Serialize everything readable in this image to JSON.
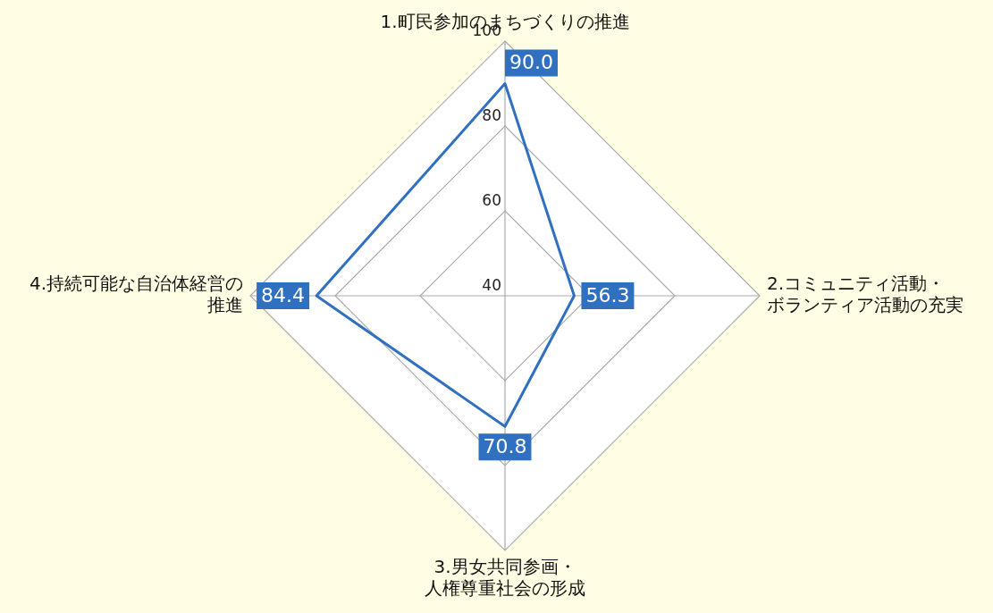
{
  "chart_data": {
    "type": "radar",
    "categories": [
      "1.町民参加のまちづくりの推進",
      "2.コミュニティ活動・ボランティア活動の充実",
      "3.男女共同参画・人権尊重社会の形成",
      "4.持続可能な自治体経営の推進"
    ],
    "series": [
      {
        "color": "#3070c0",
        "values": [
          90.0,
          56.3,
          70.8,
          84.4
        ],
        "value_labels": [
          "90.0",
          "56.3",
          "70.8",
          "84.4"
        ]
      }
    ],
    "ylim": [
      40,
      100
    ],
    "yticks": [
      40,
      60,
      80,
      100
    ],
    "grid": true,
    "legend": false,
    "marker": "none",
    "line_style": "solid"
  }
}
